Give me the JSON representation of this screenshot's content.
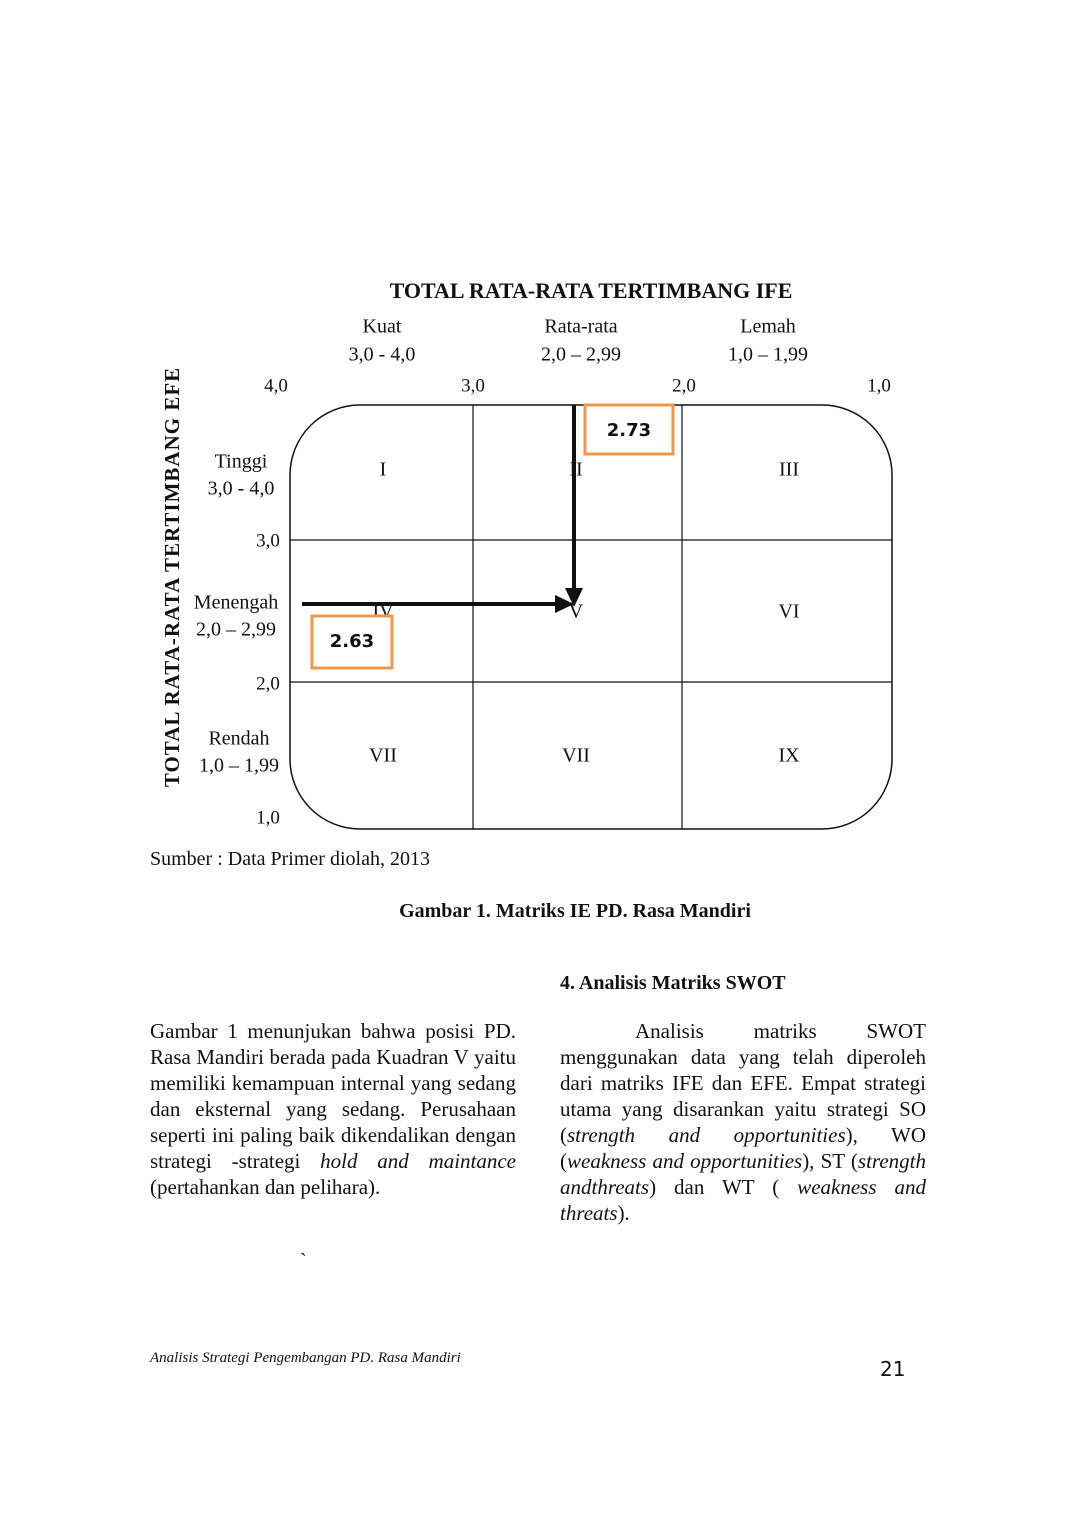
{
  "figure": {
    "title": "TOTAL RATA-RATA TERTIMBANG IFE",
    "y_axis_title": "TOTAL RATA-RATA TERTIMBANG EFE",
    "column_headers": [
      {
        "label": "Kuat",
        "range": "3,0 - 4,0"
      },
      {
        "label": "Rata-rata",
        "range": "2,0 – 2,99"
      },
      {
        "label": "Lemah",
        "range": "1,0 – 1,99"
      }
    ],
    "x_ticks": [
      "4,0",
      "3,0",
      "2,0",
      "1,0"
    ],
    "y_ticks": [
      "3,0",
      "2,0",
      "1,0"
    ],
    "row_headers": [
      {
        "label": "Tinggi",
        "range": "3,0 - 4,0"
      },
      {
        "label": "Menengah",
        "range": "2,0 – 2,99"
      },
      {
        "label": "Rendah",
        "range": "1,0 – 1,99"
      }
    ],
    "cells": [
      [
        "I",
        "II",
        "III"
      ],
      [
        "IV",
        "V",
        "VI"
      ],
      [
        "VII",
        "VII",
        "IX"
      ]
    ],
    "ife_score": "2.73",
    "efe_score": "2.63",
    "source": "Sumber : Data Primer diolah, 2013",
    "caption": "Gambar 1. Matriks IE PD. Rasa Mandiri"
  },
  "body": {
    "heading": "4. Analisis Matriks SWOT",
    "left_paragraph": [
      {
        "text": "Gambar 1 menunjukan bahwa posisi PD. Rasa Mandiri berada pada Kuadran V yaitu memiliki kemampuan internal yang sedang dan eksternal  yang sedang. Perusahaan seperti ini paling baik dikendalikan dengan strategi -strategi ",
        "italic": false
      },
      {
        "text": "hold and maintance",
        "italic": true
      },
      {
        "text": " (pertahankan dan pelihara).",
        "italic": false
      }
    ],
    "right_paragraph": [
      {
        "text": "Analisis matriks SWOT menggunakan data yang telah diperoleh dari matriks IFE dan EFE. Empat strategi utama yang disarankan yaitu strategi SO (",
        "italic": false
      },
      {
        "text": "strength and opportunities",
        "italic": true
      },
      {
        "text": "), WO (",
        "italic": false
      },
      {
        "text": "weakness and opportunities",
        "italic": true
      },
      {
        "text": "), ST (",
        "italic": false
      },
      {
        "text": "strength andthreats",
        "italic": true
      },
      {
        "text": ") dan WT ( ",
        "italic": false
      },
      {
        "text": "weakness and threats",
        "italic": true
      },
      {
        "text": ").",
        "italic": false
      }
    ],
    "stray_mark": "`"
  },
  "footer": {
    "running_title": "Analisis Strategi Pengembangan PD. Rasa Mandiri",
    "page_number": "21"
  }
}
